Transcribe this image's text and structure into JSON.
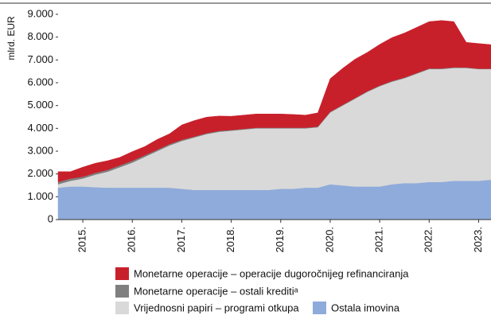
{
  "chart_data": {
    "type": "stacked_area",
    "y_axis_label": "mlrd. EUR",
    "categories": [
      null,
      null,
      "2015.",
      null,
      null,
      null,
      "2016.",
      null,
      null,
      null,
      "2017.",
      null,
      null,
      null,
      "2018.",
      null,
      null,
      null,
      "2019.",
      null,
      null,
      null,
      "2020.",
      null,
      null,
      null,
      "2021.",
      null,
      null,
      null,
      "2022.",
      null,
      null,
      null,
      "2023.",
      null
    ],
    "series": [
      {
        "name": "Ostala imovina",
        "color": "#8fabdb",
        "values": [
          1400,
          1450,
          1450,
          1420,
          1400,
          1400,
          1400,
          1400,
          1400,
          1400,
          1350,
          1300,
          1300,
          1300,
          1300,
          1300,
          1300,
          1300,
          1350,
          1350,
          1400,
          1400,
          1550,
          1500,
          1450,
          1450,
          1450,
          1550,
          1600,
          1600,
          1650,
          1650,
          1700,
          1700,
          1700,
          1750
        ]
      },
      {
        "name": "Vrijednosni papiri – programi otkupa",
        "color": "#d9d9d9",
        "values": [
          150,
          250,
          350,
          550,
          700,
          900,
          1100,
          1350,
          1600,
          1850,
          2100,
          2300,
          2450,
          2550,
          2600,
          2650,
          2700,
          2700,
          2650,
          2650,
          2600,
          2650,
          3150,
          3500,
          3850,
          4150,
          4400,
          4500,
          4600,
          4800,
          4950,
          4950,
          4950,
          4950,
          4900,
          4850
        ]
      },
      {
        "name": "Monetarne operacije – ostali kreditiᵃ",
        "color": "#7f7f7f",
        "values": [
          100,
          100,
          80,
          80,
          80,
          80,
          80,
          70,
          60,
          60,
          50,
          40,
          40,
          40,
          30,
          30,
          30,
          30,
          30,
          30,
          30,
          30,
          30,
          30,
          30,
          30,
          30,
          30,
          30,
          30,
          30,
          30,
          30,
          20,
          20,
          20
        ]
      },
      {
        "name": "Monetarne operacije – operacije dugoročnijeg refinanciranja",
        "color": "#c8202b",
        "values": [
          450,
          300,
          420,
          420,
          400,
          350,
          400,
          380,
          450,
          450,
          650,
          700,
          700,
          650,
          600,
          600,
          600,
          600,
          600,
          580,
          550,
          600,
          1450,
          1600,
          1700,
          1700,
          1800,
          1900,
          1950,
          2000,
          2050,
          2100,
          2000,
          1100,
          1100,
          1050
        ]
      }
    ],
    "ylim": [
      0,
      9000
    ],
    "yticks": [
      0,
      {
        "value": 1000,
        "label": "1.000"
      },
      {
        "value": 2000,
        "label": "2.000"
      },
      {
        "value": 3000,
        "label": "3.000"
      },
      {
        "value": 4000,
        "label": "4.000"
      },
      {
        "value": 5000,
        "label": "5.000"
      },
      {
        "value": 6000,
        "label": "6.000"
      },
      {
        "value": 7000,
        "label": "7.000"
      },
      {
        "value": 8000,
        "label": "8.000"
      },
      {
        "value": 9000,
        "label": "9.000"
      }
    ]
  }
}
